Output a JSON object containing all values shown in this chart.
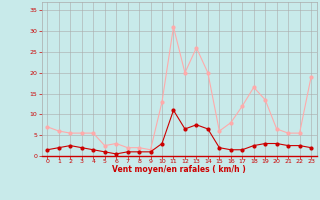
{
  "x": [
    0,
    1,
    2,
    3,
    4,
    5,
    6,
    7,
    8,
    9,
    10,
    11,
    12,
    13,
    14,
    15,
    16,
    17,
    18,
    19,
    20,
    21,
    22,
    23
  ],
  "avg_wind": [
    1.5,
    2.0,
    2.5,
    2.0,
    1.5,
    1.0,
    0.5,
    1.0,
    1.0,
    1.0,
    3.0,
    11.0,
    6.5,
    7.5,
    6.5,
    2.0,
    1.5,
    1.5,
    2.5,
    3.0,
    3.0,
    2.5,
    2.5,
    2.0
  ],
  "gust_wind": [
    7.0,
    6.0,
    5.5,
    5.5,
    5.5,
    2.5,
    3.0,
    2.0,
    2.0,
    1.5,
    13.0,
    31.0,
    20.0,
    26.0,
    20.0,
    6.0,
    8.0,
    12.0,
    16.5,
    13.5,
    6.5,
    5.5,
    5.5,
    19.0
  ],
  "avg_color": "#cc0000",
  "gust_color": "#ffaaaa",
  "bg_color": "#c8eaea",
  "grid_color": "#aaaaaa",
  "xlabel": "Vent moyen/en rafales ( km/h )",
  "xlabel_color": "#cc0000",
  "tick_color": "#cc0000",
  "ylim": [
    0,
    37
  ],
  "yticks": [
    0,
    5,
    10,
    15,
    20,
    25,
    30,
    35
  ],
  "xlim": [
    -0.5,
    23.5
  ],
  "xticks": [
    0,
    1,
    2,
    3,
    4,
    5,
    6,
    7,
    8,
    9,
    10,
    11,
    12,
    13,
    14,
    15,
    16,
    17,
    18,
    19,
    20,
    21,
    22,
    23
  ]
}
